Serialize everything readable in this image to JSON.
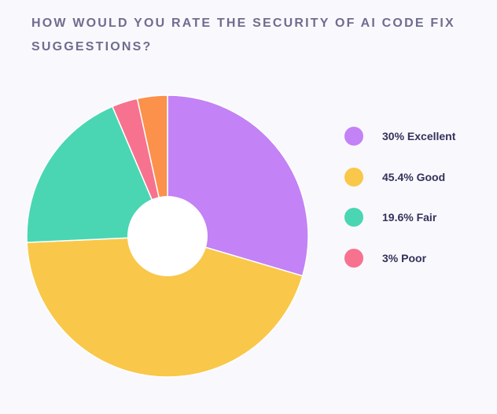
{
  "colors": {
    "background": "#f9f8fd",
    "title": "#6f6d8e",
    "legend_text": "#33325a",
    "slice_border": "#ffffff"
  },
  "chart_data": {
    "type": "pie",
    "variant": "donut",
    "title": "HOW WOULD YOU RATE THE SECURITY OF AI CODE FIX SUGGESTIONS?",
    "legend_position": "right",
    "slices": [
      {
        "key": "excellent",
        "name": "Excellent",
        "value": 30,
        "legend_label": "30% Excellent",
        "color": "#c382f5",
        "in_legend": true
      },
      {
        "key": "good",
        "name": "Good",
        "value": 45.4,
        "legend_label": "45.4% Good",
        "color": "#f9c74a",
        "in_legend": true
      },
      {
        "key": "fair",
        "name": "Fair",
        "value": 19.6,
        "legend_label": "19.6% Fair",
        "color": "#4ad6b2",
        "in_legend": true
      },
      {
        "key": "poor",
        "name": "Poor",
        "value": 3,
        "legend_label": "3% Poor",
        "color": "#f7728f",
        "in_legend": true
      },
      {
        "key": "other",
        "name": "",
        "value": 3.5,
        "legend_label": "",
        "color": "#fb914b",
        "in_legend": false
      }
    ]
  }
}
